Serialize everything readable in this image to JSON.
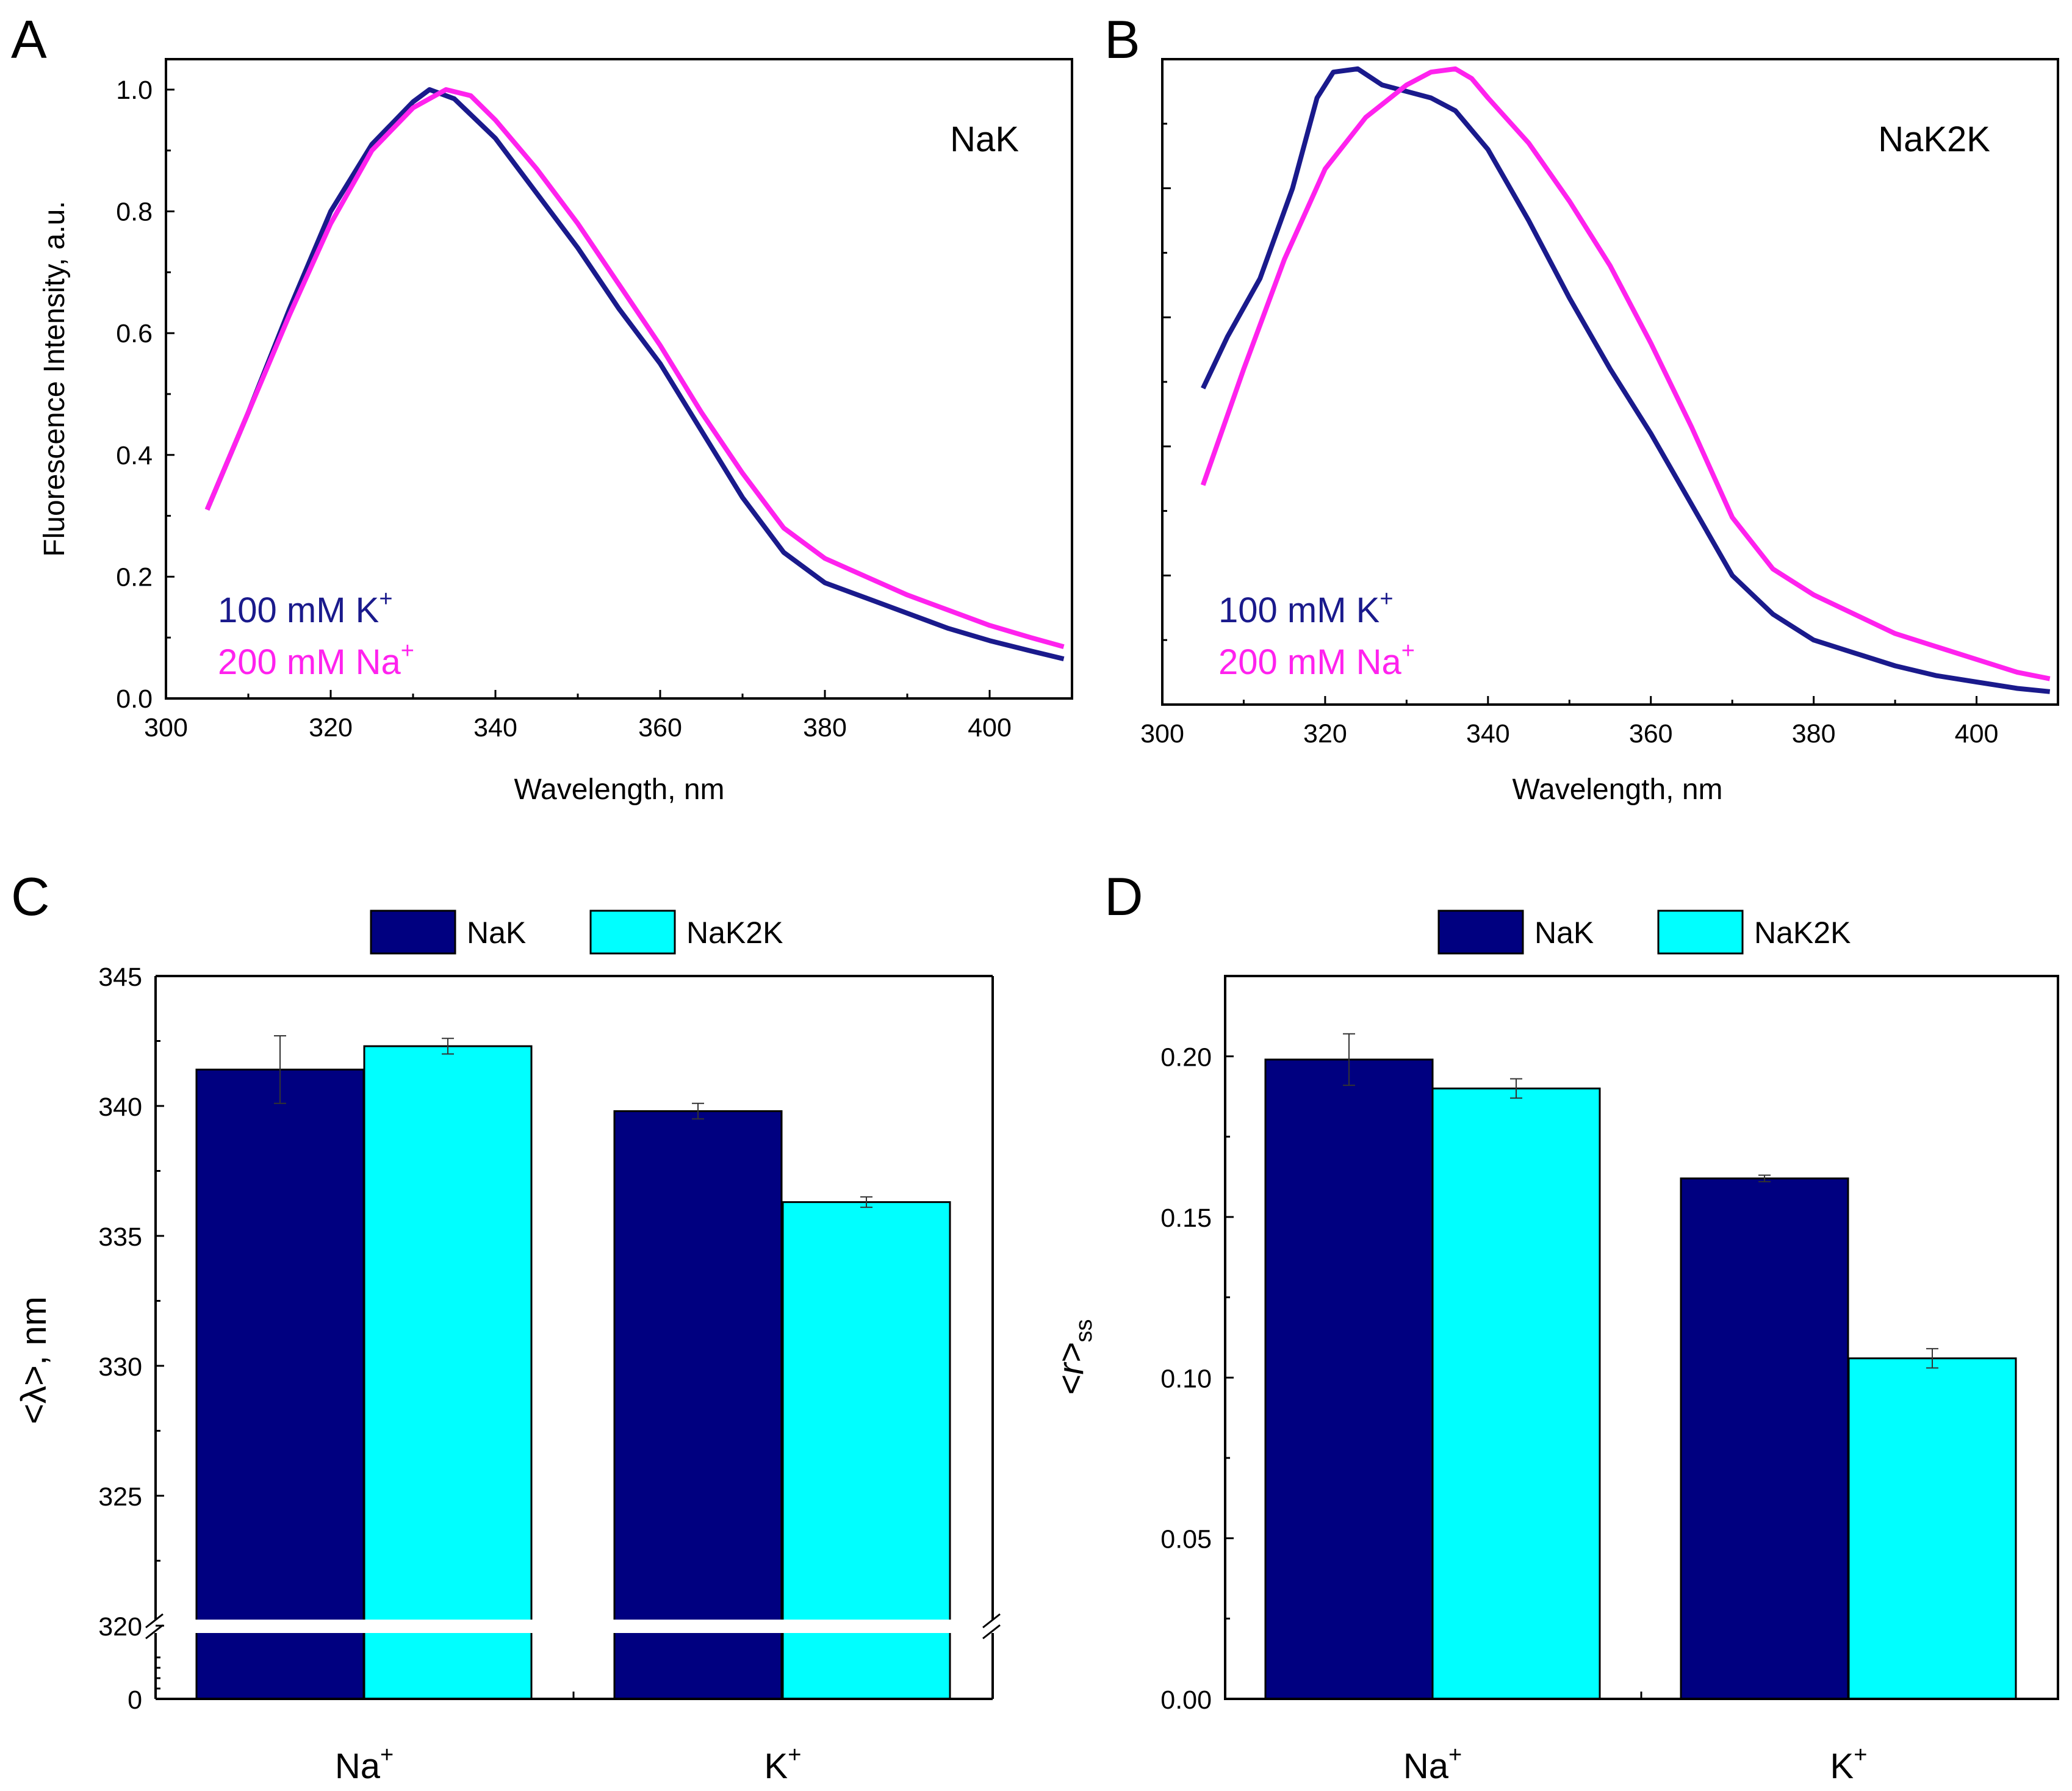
{
  "figure": {
    "panels": [
      "A",
      "B",
      "C",
      "D"
    ]
  },
  "chart_data": [
    {
      "panel": "A",
      "type": "line",
      "inset_label": "NaK",
      "xlabel": "Wavelength, nm",
      "ylabel": "Fluorescence Intensity, a.u.",
      "xlim": [
        300,
        410
      ],
      "ylim": [
        0,
        1.05
      ],
      "xticks": [
        "300",
        "320",
        "340",
        "360",
        "380",
        "400"
      ],
      "yticks": [
        "0.0",
        "0.2",
        "0.4",
        "0.6",
        "0.8",
        "1.0"
      ],
      "series": [
        {
          "name": "100 mM K+",
          "label_main": "100 mM K",
          "label_sup": "+",
          "color": "#1a1a8c",
          "x": [
            305,
            310,
            315,
            320,
            325,
            330,
            332,
            335,
            340,
            345,
            350,
            355,
            360,
            365,
            370,
            375,
            380,
            385,
            390,
            395,
            400,
            405,
            409
          ],
          "y": [
            0.31,
            0.47,
            0.64,
            0.8,
            0.91,
            0.98,
            1.0,
            0.985,
            0.92,
            0.83,
            0.74,
            0.64,
            0.55,
            0.44,
            0.33,
            0.24,
            0.19,
            0.165,
            0.14,
            0.115,
            0.095,
            0.078,
            0.065
          ]
        },
        {
          "name": "200 mM Na+",
          "label_main": "200 mM Na",
          "label_sup": "+",
          "color": "#ff22ee",
          "x": [
            305,
            310,
            315,
            320,
            325,
            330,
            334,
            337,
            340,
            345,
            350,
            355,
            360,
            365,
            370,
            375,
            380,
            385,
            390,
            395,
            400,
            405,
            409
          ],
          "y": [
            0.31,
            0.47,
            0.63,
            0.78,
            0.9,
            0.97,
            1.0,
            0.99,
            0.95,
            0.87,
            0.78,
            0.68,
            0.58,
            0.47,
            0.37,
            0.28,
            0.23,
            0.2,
            0.17,
            0.145,
            0.12,
            0.1,
            0.085
          ]
        }
      ]
    },
    {
      "panel": "B",
      "type": "line",
      "inset_label": "NaK2K",
      "xlabel": "Wavelength, nm",
      "ylabel": "",
      "xlim": [
        300,
        410
      ],
      "ylim": [
        0,
        1.0
      ],
      "xticks": [
        "300",
        "320",
        "340",
        "360",
        "380",
        "400"
      ],
      "series": [
        {
          "name": "100 mM K+",
          "label_main": "100 mM K",
          "label_sup": "+",
          "color": "#1a1a8c",
          "x": [
            305,
            308,
            312,
            316,
            319,
            321,
            324,
            327,
            330,
            333,
            336,
            340,
            345,
            350,
            355,
            360,
            365,
            370,
            375,
            380,
            385,
            390,
            395,
            400,
            405,
            409
          ],
          "y": [
            0.49,
            0.57,
            0.66,
            0.8,
            0.94,
            0.98,
            0.985,
            0.96,
            0.95,
            0.94,
            0.92,
            0.86,
            0.75,
            0.63,
            0.52,
            0.42,
            0.31,
            0.2,
            0.14,
            0.1,
            0.08,
            0.06,
            0.045,
            0.035,
            0.025,
            0.02
          ]
        },
        {
          "name": "200 mM Na+",
          "label_main": "200 mM Na",
          "label_sup": "+",
          "color": "#ff22ee",
          "x": [
            305,
            310,
            315,
            320,
            325,
            330,
            333,
            336,
            338,
            340,
            345,
            350,
            355,
            360,
            365,
            370,
            375,
            380,
            385,
            390,
            395,
            400,
            405,
            409
          ],
          "y": [
            0.34,
            0.52,
            0.69,
            0.83,
            0.91,
            0.96,
            0.98,
            0.985,
            0.97,
            0.94,
            0.87,
            0.78,
            0.68,
            0.56,
            0.43,
            0.29,
            0.21,
            0.17,
            0.14,
            0.11,
            0.09,
            0.07,
            0.05,
            0.04
          ]
        }
      ]
    },
    {
      "panel": "C",
      "type": "bar",
      "ylabel": "<λ>, nm",
      "legend": [
        {
          "name": "NaK",
          "color": "#000080"
        },
        {
          "name": "NaK2K",
          "color": "#00ffff"
        }
      ],
      "categories": [
        {
          "main": "Na",
          "sup": "+"
        },
        {
          "main": "K",
          "sup": "+"
        }
      ],
      "broken_axis": {
        "lower_range": [
          0,
          5
        ],
        "upper_range": [
          320,
          345
        ]
      },
      "yticks_upper": [
        "320",
        "325",
        "330",
        "335",
        "340",
        "345"
      ],
      "yticks_lower": [
        "0"
      ],
      "series": [
        {
          "name": "NaK",
          "values": [
            341.4,
            339.8
          ],
          "errors": [
            1.3,
            0.3
          ]
        },
        {
          "name": "NaK2K",
          "values": [
            342.3,
            336.3
          ],
          "errors": [
            0.3,
            0.2
          ]
        }
      ]
    },
    {
      "panel": "D",
      "type": "bar",
      "ylabel_main": "<r>",
      "ylabel_sub": "ss",
      "legend": [
        {
          "name": "NaK",
          "color": "#000080"
        },
        {
          "name": "NaK2K",
          "color": "#00ffff"
        }
      ],
      "categories": [
        {
          "main": "Na",
          "sup": "+"
        },
        {
          "main": "K",
          "sup": "+"
        }
      ],
      "ylim": [
        0,
        0.225
      ],
      "yticks": [
        "0.00",
        "0.05",
        "0.10",
        "0.15",
        "0.20"
      ],
      "series": [
        {
          "name": "NaK",
          "values": [
            0.199,
            0.162
          ],
          "errors": [
            0.008,
            0.001
          ]
        },
        {
          "name": "NaK2K",
          "values": [
            0.19,
            0.106
          ],
          "errors": [
            0.003,
            0.003
          ]
        }
      ]
    }
  ]
}
